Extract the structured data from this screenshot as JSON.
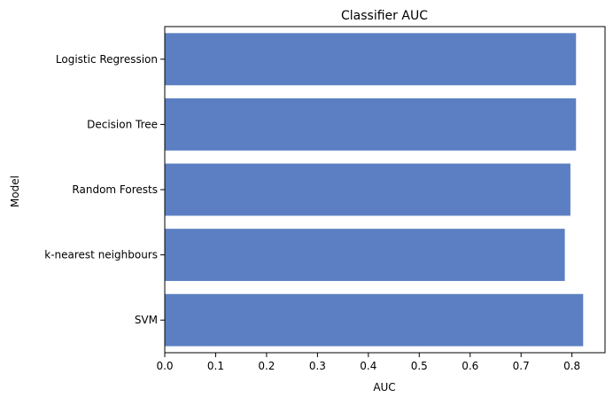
{
  "chart_data": {
    "type": "bar",
    "orientation": "horizontal",
    "title": "Classifier AUC",
    "xlabel": "AUC",
    "ylabel": "Model",
    "categories": [
      "Logistic Regression",
      "Decision Tree",
      "Random Forests",
      "k-nearest neighbours",
      "SVM"
    ],
    "values": [
      0.808,
      0.808,
      0.797,
      0.786,
      0.822
    ],
    "xlim": [
      0,
      0.865
    ],
    "xticks": [
      0.0,
      0.1,
      0.2,
      0.3,
      0.4,
      0.5,
      0.6,
      0.7,
      0.8
    ],
    "xtick_labels": [
      "0.0",
      "0.1",
      "0.2",
      "0.3",
      "0.4",
      "0.5",
      "0.6",
      "0.7",
      "0.8"
    ],
    "bar_color": "#5b7fc2",
    "grid": false,
    "legend": "none"
  }
}
